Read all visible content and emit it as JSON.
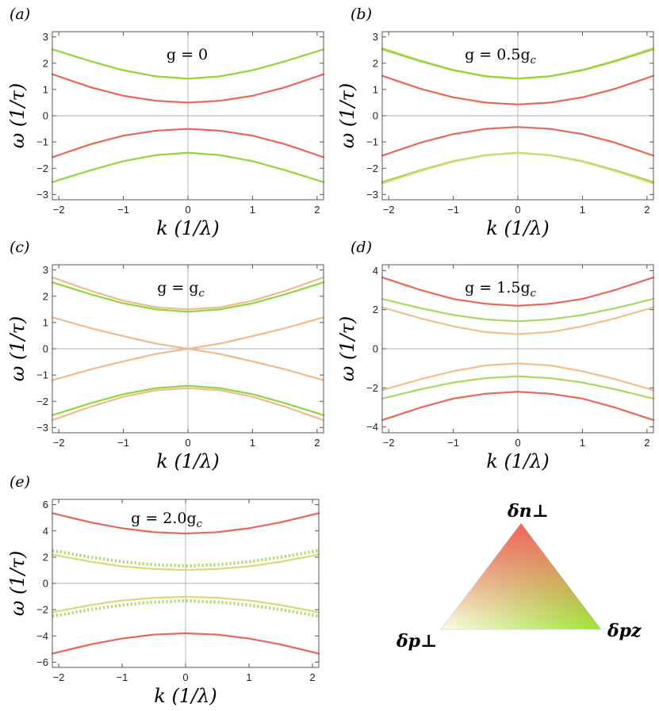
{
  "colors": {
    "red": "#e8665a",
    "green": "#8fd63a",
    "peach": "#f0b98e",
    "khaki": "#d9d97a",
    "frame": "#555555",
    "axis": "#999999"
  },
  "legend_triangle": {
    "top_label": "δn⊥",
    "left_label": "δp⊥",
    "right_label": "δpz",
    "top_color": "#f25a5a",
    "left_color": "#fdfde6",
    "right_color": "#9be530"
  },
  "chart_data": [
    {
      "type": "line",
      "panel_label": "(a)",
      "annotation": "g = 0",
      "xlabel": "k (1/λ)",
      "ylabel": "ω (1/τ)",
      "xlim": [
        -2.1,
        2.1
      ],
      "ylim": [
        -3.2,
        3.2
      ],
      "xticks": [
        -2,
        -1,
        0,
        1,
        2
      ],
      "xtick_labels": [
        "−2",
        "−1",
        "0",
        "1",
        "2"
      ],
      "yticks": [
        -3,
        -2,
        -1,
        0,
        1,
        2,
        3
      ],
      "ytick_labels": [
        "−3",
        "−2",
        "−1",
        "0",
        "1",
        "2",
        "3"
      ],
      "series": [
        {
          "color": "#8fd63a",
          "style": "solid",
          "x": [
            -2.1,
            -1.5,
            -1,
            -0.5,
            0,
            0.5,
            1,
            1.5,
            2.1
          ],
          "y": [
            2.53,
            2.07,
            1.73,
            1.5,
            1.41,
            1.5,
            1.73,
            2.07,
            2.53
          ]
        },
        {
          "color": "#e8665a",
          "style": "solid",
          "x": [
            -2.1,
            -1.5,
            -1,
            -0.5,
            0,
            0.5,
            1,
            1.5,
            2.1
          ],
          "y": [
            1.58,
            1.08,
            0.76,
            0.57,
            0.5,
            0.57,
            0.76,
            1.08,
            1.58
          ]
        },
        {
          "color": "#e8665a",
          "style": "solid",
          "x": [
            -2.1,
            -1.5,
            -1,
            -0.5,
            0,
            0.5,
            1,
            1.5,
            2.1
          ],
          "y": [
            -1.58,
            -1.08,
            -0.76,
            -0.57,
            -0.5,
            -0.57,
            -0.76,
            -1.08,
            -1.58
          ]
        },
        {
          "color": "#8fd63a",
          "style": "solid",
          "x": [
            -2.1,
            -1.5,
            -1,
            -0.5,
            0,
            0.5,
            1,
            1.5,
            2.1
          ],
          "y": [
            -2.53,
            -2.07,
            -1.73,
            -1.5,
            -1.41,
            -1.5,
            -1.73,
            -2.07,
            -2.53
          ]
        }
      ]
    },
    {
      "type": "line",
      "panel_label": "(b)",
      "annotation": "g = 0.5g",
      "annotation_sub": "c",
      "xlabel": "k (1/λ)",
      "ylabel": "ω (1/τ)",
      "xlim": [
        -2.1,
        2.1
      ],
      "ylim": [
        -3.2,
        3.2
      ],
      "xticks": [
        -2,
        -1,
        0,
        1,
        2
      ],
      "xtick_labels": [
        "−2",
        "−1",
        "0",
        "1",
        "2"
      ],
      "yticks": [
        -3,
        -2,
        -1,
        0,
        1,
        2,
        3
      ],
      "ytick_labels": [
        "−3",
        "−2",
        "−1",
        "0",
        "1",
        "2",
        "3"
      ],
      "series": [
        {
          "color": "#d9d97a",
          "style": "solid",
          "x": [
            -2.1,
            -1.5,
            -1,
            -0.5,
            0,
            0.5,
            1,
            1.5,
            2.1
          ],
          "y": [
            2.58,
            2.1,
            1.75,
            1.51,
            1.42,
            1.51,
            1.75,
            2.1,
            2.58
          ]
        },
        {
          "color": "#8fd63a",
          "style": "solid",
          "x": [
            -2.1,
            -1.5,
            -1,
            -0.5,
            0,
            0.5,
            1,
            1.5,
            2.1
          ],
          "y": [
            2.53,
            2.07,
            1.73,
            1.5,
            1.41,
            1.5,
            1.73,
            2.07,
            2.53
          ]
        },
        {
          "color": "#e8665a",
          "style": "solid",
          "x": [
            -2.1,
            -1.5,
            -1,
            -0.5,
            0,
            0.5,
            1,
            1.5,
            2.1
          ],
          "y": [
            1.52,
            1.02,
            0.7,
            0.5,
            0.43,
            0.5,
            0.7,
            1.02,
            1.52
          ]
        },
        {
          "color": "#e8665a",
          "style": "solid",
          "x": [
            -2.1,
            -1.5,
            -1,
            -0.5,
            0,
            0.5,
            1,
            1.5,
            2.1
          ],
          "y": [
            -1.52,
            -1.02,
            -0.7,
            -0.5,
            -0.43,
            -0.5,
            -0.7,
            -1.02,
            -1.52
          ]
        },
        {
          "color": "#8fd63a",
          "style": "solid",
          "x": [
            -2.1,
            -1.5,
            -1,
            -0.5,
            0,
            0.5,
            1,
            1.5,
            2.1
          ],
          "y": [
            -2.53,
            -2.07,
            -1.73,
            -1.5,
            -1.41,
            -1.5,
            -1.73,
            -2.07,
            -2.53
          ]
        },
        {
          "color": "#d9d97a",
          "style": "solid",
          "x": [
            -2.1,
            -1.5,
            -1,
            -0.5,
            0,
            0.5,
            1,
            1.5,
            2.1
          ],
          "y": [
            -2.58,
            -2.1,
            -1.75,
            -1.51,
            -1.42,
            -1.51,
            -1.75,
            -2.1,
            -2.58
          ]
        }
      ]
    },
    {
      "type": "line",
      "panel_label": "(c)",
      "annotation": "g = g",
      "annotation_sub": "c",
      "xlabel": "k (1/λ)",
      "ylabel": "ω (1/τ)",
      "xlim": [
        -2.1,
        2.1
      ],
      "ylim": [
        -3.2,
        3.2
      ],
      "xticks": [
        -2,
        -1,
        0,
        1,
        2
      ],
      "xtick_labels": [
        "−2",
        "−1",
        "0",
        "1",
        "2"
      ],
      "yticks": [
        -3,
        -2,
        -1,
        0,
        1,
        2,
        3
      ],
      "ytick_labels": [
        "−3",
        "−2",
        "−1",
        "0",
        "1",
        "2",
        "3"
      ],
      "series": [
        {
          "color": "#f0b98e",
          "style": "solid",
          "x": [
            -2.1,
            -1.5,
            -1,
            -0.5,
            0,
            0.5,
            1,
            1.5,
            2.1
          ],
          "y": [
            2.72,
            2.2,
            1.83,
            1.58,
            1.5,
            1.58,
            1.83,
            2.2,
            2.72
          ]
        },
        {
          "color": "#8fd63a",
          "style": "solid",
          "x": [
            -2.1,
            -1.5,
            -1,
            -0.5,
            0,
            0.5,
            1,
            1.5,
            2.1
          ],
          "y": [
            2.53,
            2.07,
            1.73,
            1.5,
            1.41,
            1.5,
            1.73,
            2.07,
            2.53
          ]
        },
        {
          "color": "#f0b98e",
          "style": "solid",
          "x": [
            -2.1,
            -1.5,
            -1,
            -0.5,
            0,
            0.5,
            1,
            1.5,
            2.1
          ],
          "y": [
            1.2,
            0.78,
            0.48,
            0.2,
            0.0,
            -0.2,
            -0.48,
            -0.78,
            -1.2
          ]
        },
        {
          "color": "#f0b98e",
          "style": "solid",
          "x": [
            -2.1,
            -1.5,
            -1,
            -0.5,
            0,
            0.5,
            1,
            1.5,
            2.1
          ],
          "y": [
            -1.2,
            -0.78,
            -0.48,
            -0.2,
            0.0,
            0.2,
            0.48,
            0.78,
            1.2
          ]
        },
        {
          "color": "#8fd63a",
          "style": "solid",
          "x": [
            -2.1,
            -1.5,
            -1,
            -0.5,
            0,
            0.5,
            1,
            1.5,
            2.1
          ],
          "y": [
            -2.53,
            -2.07,
            -1.73,
            -1.5,
            -1.41,
            -1.5,
            -1.73,
            -2.07,
            -2.53
          ]
        },
        {
          "color": "#f0b98e",
          "style": "solid",
          "x": [
            -2.1,
            -1.5,
            -1,
            -0.5,
            0,
            0.5,
            1,
            1.5,
            2.1
          ],
          "y": [
            -2.72,
            -2.2,
            -1.83,
            -1.58,
            -1.5,
            -1.58,
            -1.83,
            -2.2,
            -2.72
          ]
        }
      ]
    },
    {
      "type": "line",
      "panel_label": "(d)",
      "annotation": "g = 1.5g",
      "annotation_sub": "c",
      "xlabel": "k (1/λ)",
      "ylabel": "ω (1/τ)",
      "xlim": [
        -2.1,
        2.1
      ],
      "ylim": [
        -4.3,
        4.3
      ],
      "xticks": [
        -2,
        -1,
        0,
        1,
        2
      ],
      "xtick_labels": [
        "−2",
        "−1",
        "0",
        "1",
        "2"
      ],
      "yticks": [
        -4,
        -2,
        0,
        2,
        4
      ],
      "ytick_labels": [
        "−4",
        "−2",
        "0",
        "2",
        "4"
      ],
      "series": [
        {
          "color": "#e8665a",
          "style": "solid",
          "x": [
            -2.1,
            -1.5,
            -1,
            -0.5,
            0,
            0.5,
            1,
            1.5,
            2.1
          ],
          "y": [
            3.65,
            3.0,
            2.55,
            2.3,
            2.2,
            2.3,
            2.55,
            3.0,
            3.65
          ]
        },
        {
          "color": "#a8d860",
          "style": "solid",
          "x": [
            -2.1,
            -1.5,
            -1,
            -0.5,
            0,
            0.5,
            1,
            1.5,
            2.1
          ],
          "y": [
            2.55,
            2.07,
            1.73,
            1.5,
            1.41,
            1.5,
            1.73,
            2.07,
            2.55
          ]
        },
        {
          "color": "#f0c08e",
          "style": "solid",
          "x": [
            -2.1,
            -1.5,
            -1,
            -0.5,
            0,
            0.5,
            1,
            1.5,
            2.1
          ],
          "y": [
            2.12,
            1.55,
            1.15,
            0.85,
            0.75,
            0.85,
            1.15,
            1.55,
            2.12
          ]
        },
        {
          "color": "#f0c08e",
          "style": "solid",
          "x": [
            -2.1,
            -1.5,
            -1,
            -0.5,
            0,
            0.5,
            1,
            1.5,
            2.1
          ],
          "y": [
            -2.12,
            -1.55,
            -1.15,
            -0.85,
            -0.75,
            -0.85,
            -1.15,
            -1.55,
            -2.12
          ]
        },
        {
          "color": "#a8d860",
          "style": "solid",
          "x": [
            -2.1,
            -1.5,
            -1,
            -0.5,
            0,
            0.5,
            1,
            1.5,
            2.1
          ],
          "y": [
            -2.55,
            -2.07,
            -1.73,
            -1.5,
            -1.41,
            -1.5,
            -1.73,
            -2.07,
            -2.55
          ]
        },
        {
          "color": "#e8665a",
          "style": "solid",
          "x": [
            -2.1,
            -1.5,
            -1,
            -0.5,
            0,
            0.5,
            1,
            1.5,
            2.1
          ],
          "y": [
            -3.65,
            -3.0,
            -2.55,
            -2.3,
            -2.2,
            -2.3,
            -2.55,
            -3.0,
            -3.65
          ]
        }
      ]
    },
    {
      "type": "line",
      "panel_label": "(e)",
      "annotation": "g = 2.0g",
      "annotation_sub": "c",
      "xlabel": "k (1/λ)",
      "ylabel": "ω (1/τ)",
      "xlim": [
        -2.1,
        2.1
      ],
      "ylim": [
        -6.4,
        6.4
      ],
      "xticks": [
        -2,
        -1,
        0,
        1,
        2
      ],
      "xtick_labels": [
        "−2",
        "−1",
        "0",
        "1",
        "2"
      ],
      "yticks": [
        -6,
        -4,
        -2,
        0,
        2,
        4,
        6
      ],
      "ytick_labels": [
        "−6",
        "−4",
        "−2",
        "0",
        "2",
        "4",
        "6"
      ],
      "series": [
        {
          "color": "#e8665a",
          "style": "solid",
          "x": [
            -2.1,
            -1.5,
            -1,
            -0.5,
            0,
            0.5,
            1,
            1.5,
            2.1
          ],
          "y": [
            5.35,
            4.65,
            4.2,
            3.9,
            3.8,
            3.9,
            4.2,
            4.65,
            5.35
          ]
        },
        {
          "color": "#a8d860",
          "style": "dotted",
          "x": [
            -2.1,
            -1.5,
            -1,
            -0.5,
            0,
            0.5,
            1,
            1.5,
            2.1
          ],
          "y": [
            2.5,
            2.0,
            1.65,
            1.42,
            1.33,
            1.42,
            1.65,
            2.0,
            2.5
          ]
        },
        {
          "color": "#d9d97a",
          "style": "solid",
          "x": [
            -2.1,
            -1.5,
            -1,
            -0.5,
            0,
            0.5,
            1,
            1.5,
            2.1
          ],
          "y": [
            2.2,
            1.65,
            1.3,
            1.1,
            1.02,
            1.1,
            1.3,
            1.65,
            2.2
          ]
        },
        {
          "color": "#d9d97a",
          "style": "solid",
          "x": [
            -2.1,
            -1.5,
            -1,
            -0.5,
            0,
            0.5,
            1,
            1.5,
            2.1
          ],
          "y": [
            -2.2,
            -1.65,
            -1.3,
            -1.1,
            -1.02,
            -1.1,
            -1.3,
            -1.65,
            -2.2
          ]
        },
        {
          "color": "#a8d860",
          "style": "dotted",
          "x": [
            -2.1,
            -1.5,
            -1,
            -0.5,
            0,
            0.5,
            1,
            1.5,
            2.1
          ],
          "y": [
            -2.5,
            -2.0,
            -1.65,
            -1.42,
            -1.33,
            -1.42,
            -1.65,
            -2.0,
            -2.5
          ]
        },
        {
          "color": "#e8665a",
          "style": "solid",
          "x": [
            -2.1,
            -1.5,
            -1,
            -0.5,
            0,
            0.5,
            1,
            1.5,
            2.1
          ],
          "y": [
            -5.35,
            -4.65,
            -4.2,
            -3.9,
            -3.8,
            -3.9,
            -4.2,
            -4.65,
            -5.35
          ]
        }
      ]
    }
  ]
}
